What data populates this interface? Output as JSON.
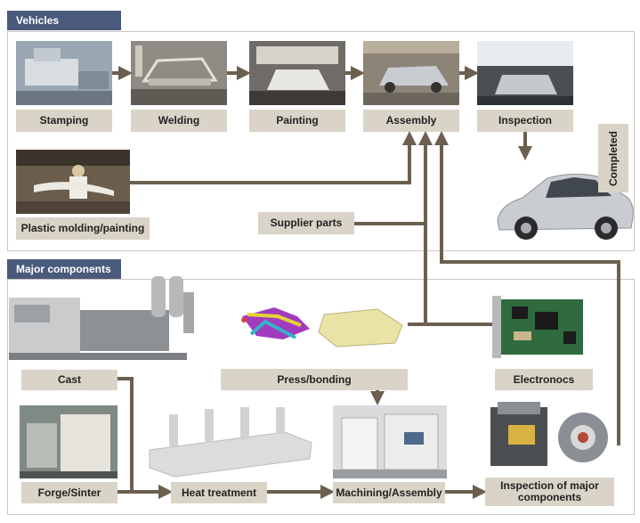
{
  "vehicles": {
    "tab": "Vehicles",
    "steps": [
      "Stamping",
      "Welding",
      "Painting",
      "Assembly",
      "Inspection"
    ],
    "plastic": "Plastic molding/painting",
    "supplier": "Supplier parts",
    "completed": "Completed"
  },
  "components": {
    "tab": "Major components",
    "cast": "Cast",
    "press": "Press/bonding",
    "electronics": "Electronocs",
    "forge": "Forge/Sinter",
    "heat": "Heat treatment",
    "machining": "Machining/Assembly",
    "inspection": "Inspection of major components"
  },
  "colors": {
    "arrow": "#6b5f4f",
    "label_bg": "#d9d4c7",
    "tab_bg": "#4a5a7d"
  }
}
